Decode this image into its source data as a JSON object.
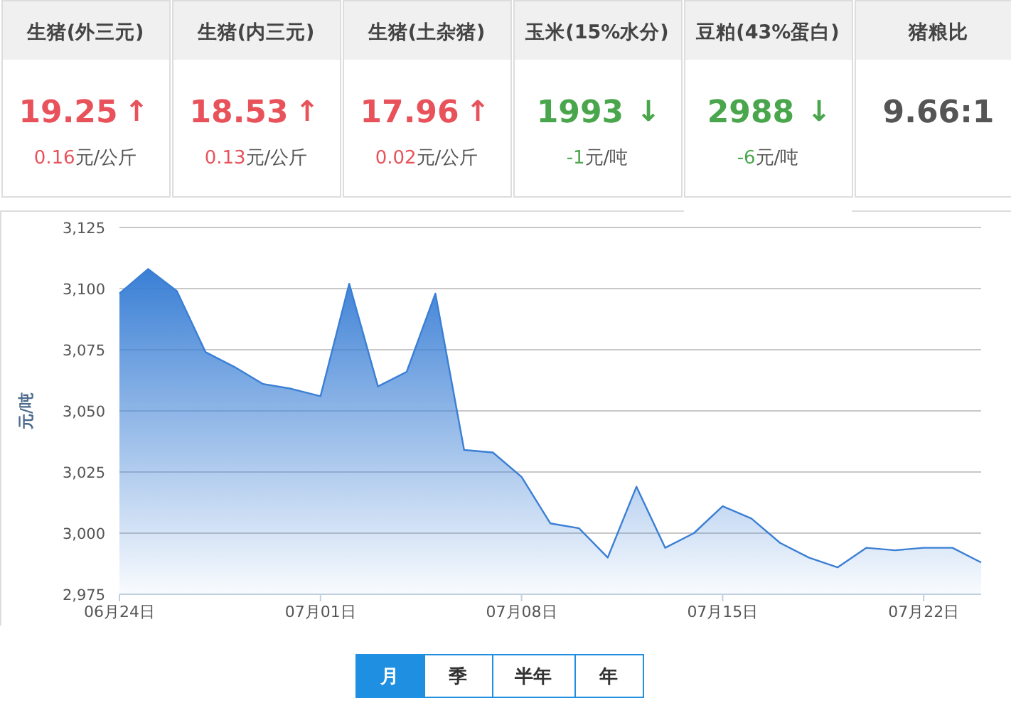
{
  "chart_data": [
    {
      "type": "other",
      "title": "生猪(外三元)",
      "annotations": [
        "19.25",
        "↑",
        "0.16",
        "元/公斤"
      ],
      "color": "#e8525a"
    },
    {
      "type": "other",
      "title": "生猪(内三元)",
      "annotations": [
        "18.53",
        "↑",
        "0.13",
        "元/公斤"
      ],
      "color": "#e8525a"
    },
    {
      "type": "other",
      "title": "生猪(土杂猪)",
      "annotations": [
        "17.96",
        "↑",
        "0.02",
        "元/公斤"
      ],
      "color": "#e8525a"
    },
    {
      "type": "other",
      "title": "玉米(15%水分)",
      "annotations": [
        "1993",
        "↓",
        "-1",
        "元/吨"
      ],
      "color": "#4aa64c"
    },
    {
      "type": "other",
      "title": "豆粕(43%蛋白)",
      "annotations": [
        "2988",
        "↓",
        "-6",
        "元/吨"
      ],
      "color": "#4aa64c"
    },
    {
      "type": "other",
      "title": "猪粮比",
      "annotations": [
        "9.66:1"
      ],
      "color": "#555555"
    },
    {
      "type": "area",
      "ylabel": "元/吨",
      "color": "#3a7fd5",
      "grid": "y",
      "x": [
        "--06-24",
        "--06-25",
        "--06-26",
        "--06-27",
        "--06-28",
        "--06-29",
        "--06-30",
        "--07-01",
        "--07-02",
        "--07-03",
        "--07-04",
        "--07-05",
        "--07-06",
        "--07-07",
        "--07-08",
        "--07-09",
        "--07-10",
        "--07-11",
        "--07-12",
        "--07-13",
        "--07-14",
        "--07-15",
        "--07-16",
        "--07-17",
        "--07-18",
        "--07-19",
        "--07-20",
        "--07-21",
        "--07-22",
        "--07-23",
        "--07-24"
      ],
      "values": [
        3098,
        3108,
        3099,
        3074,
        3068,
        3061,
        3059,
        3056,
        3102,
        3060,
        3066,
        3098,
        3034,
        3033,
        3023,
        3004,
        3002,
        2990,
        3019,
        2994,
        3000,
        3011,
        3006,
        2996,
        2990,
        2986,
        2994,
        2993,
        2994,
        2994,
        2988
      ],
      "xlim": [
        "--06-24",
        "--07-24"
      ],
      "xticks": [
        {
          "value": "--06-24",
          "label": "06月24日"
        },
        {
          "value": "--07-01",
          "label": "07月01日"
        },
        {
          "value": "--07-08",
          "label": "07月08日"
        },
        {
          "value": "--07-15",
          "label": "07月15日"
        },
        {
          "value": "--07-22",
          "label": "07月22日"
        }
      ],
      "ylim": [
        2975,
        3125
      ],
      "yticks": [
        {
          "value": 2975,
          "label": "2,975"
        },
        {
          "value": 3000,
          "label": "3,000"
        },
        {
          "value": 3025,
          "label": "3,025"
        },
        {
          "value": 3050,
          "label": "3,050"
        },
        {
          "value": 3075,
          "label": "3,075"
        },
        {
          "value": 3100,
          "label": "3,100"
        },
        {
          "value": 3125,
          "label": "3,125"
        }
      ]
    },
    {
      "type": "other",
      "categories": [
        "月",
        "季",
        "半年",
        "年"
      ],
      "colors": [
        "#1e8fe1",
        "#ffffff",
        "#ffffff",
        "#ffffff"
      ]
    }
  ]
}
